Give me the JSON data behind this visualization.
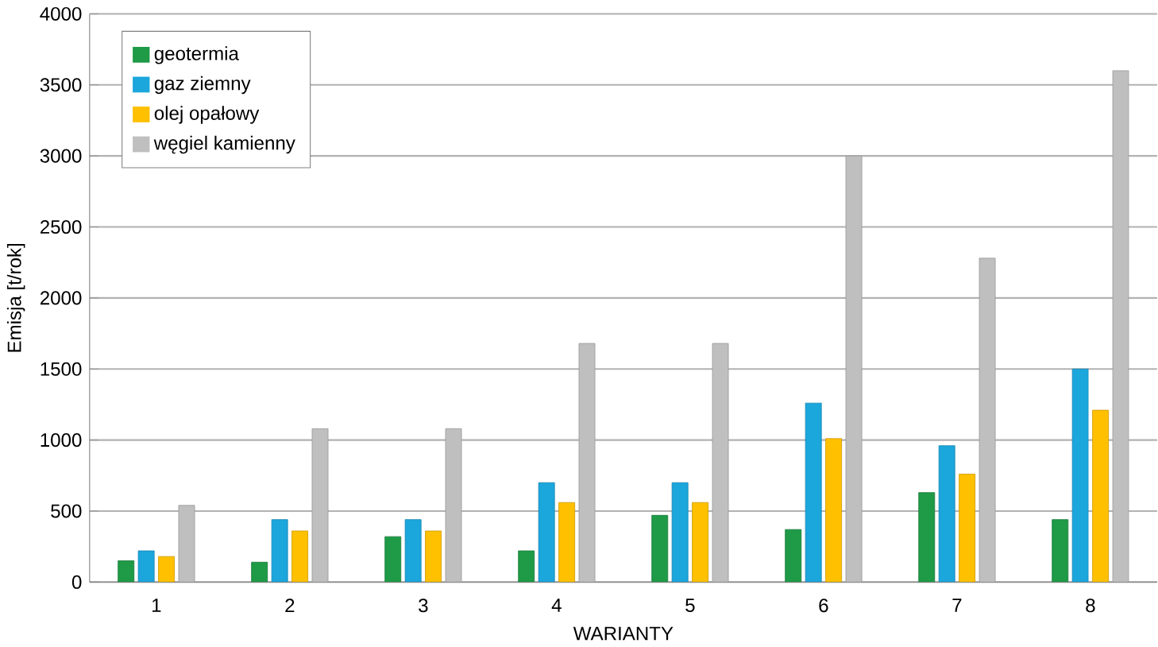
{
  "chart_data": {
    "type": "bar",
    "xlabel": "WARIANTY",
    "ylabel": "Emisja  [t/rok]",
    "categories": [
      "1",
      "2",
      "3",
      "4",
      "5",
      "6",
      "7",
      "8"
    ],
    "series": [
      {
        "name": "geotermia",
        "color": "#1f9a47",
        "values": [
          150,
          140,
          320,
          220,
          470,
          370,
          630,
          440
        ]
      },
      {
        "name": "gaz ziemny",
        "color": "#1ba6dc",
        "values": [
          220,
          440,
          440,
          700,
          700,
          1260,
          960,
          1500
        ]
      },
      {
        "name": "olej opałowy",
        "color": "#ffc000",
        "values": [
          180,
          360,
          360,
          560,
          560,
          1010,
          760,
          1210
        ]
      },
      {
        "name": "węgiel kamienny",
        "color": "#bfbfbf",
        "values": [
          540,
          1080,
          1080,
          1680,
          1680,
          3000,
          2280,
          3600
        ]
      }
    ],
    "ylim": [
      0,
      4000
    ],
    "yticks": [
      0,
      500,
      1000,
      1500,
      2000,
      2500,
      3000,
      3500,
      4000
    ],
    "grid": "y",
    "legend": "top left"
  }
}
